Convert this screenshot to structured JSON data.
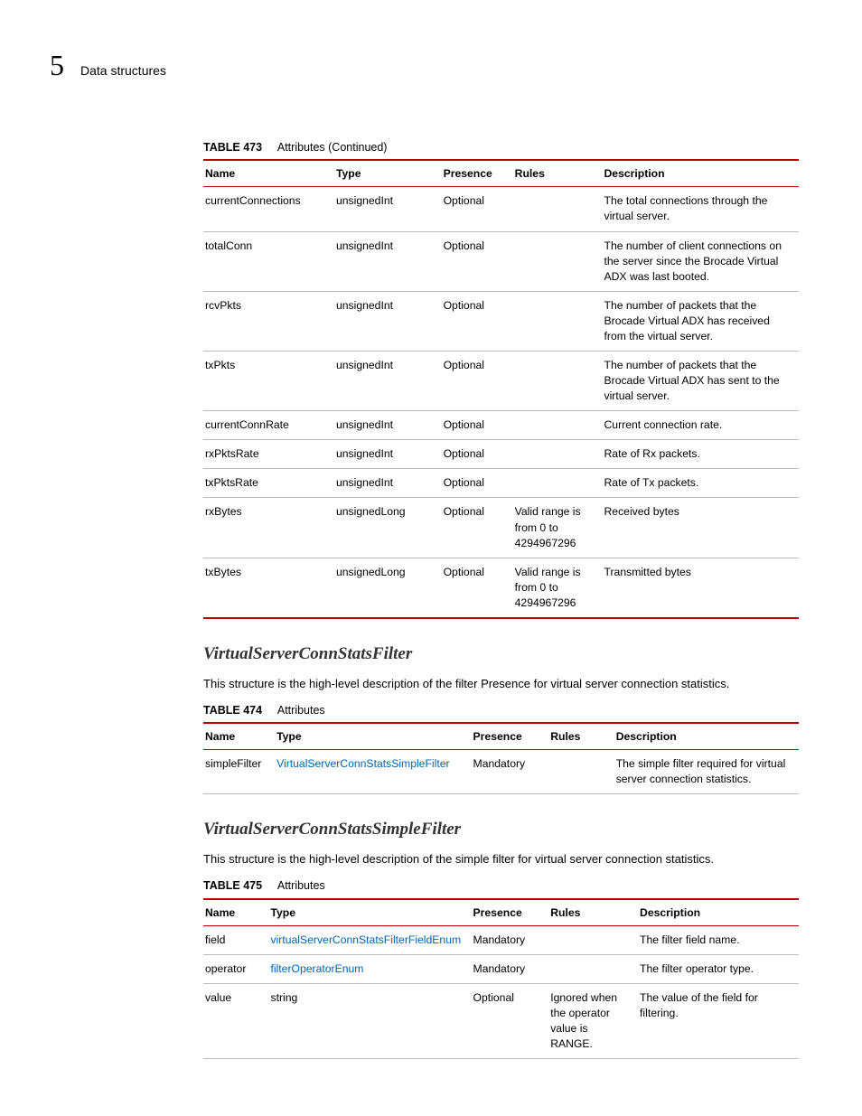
{
  "header": {
    "chapter": "5",
    "title": "Data structures"
  },
  "t473": {
    "number": "TABLE 473",
    "caption": "Attributes  (Continued)",
    "cols": [
      "Name",
      "Type",
      "Presence",
      "Rules",
      "Description"
    ],
    "rows": [
      {
        "name": "currentConnections",
        "type": "unsignedInt",
        "presence": "Optional",
        "rules": "",
        "desc": "The total connections through the virtual server."
      },
      {
        "name": "totalConn",
        "type": "unsignedInt",
        "presence": "Optional",
        "rules": "",
        "desc": "The number of client connections on the server since the Brocade Virtual ADX was last booted."
      },
      {
        "name": "rcvPkts",
        "type": "unsignedInt",
        "presence": "Optional",
        "rules": "",
        "desc": "The number of packets that the Brocade Virtual ADX has received from the virtual server."
      },
      {
        "name": "txPkts",
        "type": "unsignedInt",
        "presence": "Optional",
        "rules": "",
        "desc": "The number of packets that the Brocade Virtual ADX has sent to the virtual server."
      },
      {
        "name": "currentConnRate",
        "type": "unsignedInt",
        "presence": "Optional",
        "rules": "",
        "desc": "Current connection rate."
      },
      {
        "name": "rxPktsRate",
        "type": "unsignedInt",
        "presence": "Optional",
        "rules": "",
        "desc": "Rate of Rx packets."
      },
      {
        "name": "txPktsRate",
        "type": "unsignedInt",
        "presence": "Optional",
        "rules": "",
        "desc": "Rate of Tx packets."
      },
      {
        "name": "rxBytes",
        "type": "unsignedLong",
        "presence": "Optional",
        "rules": "Valid range is from 0 to 4294967296",
        "desc": "Received bytes"
      },
      {
        "name": "txBytes",
        "type": "unsignedLong",
        "presence": "Optional",
        "rules": "Valid range is from 0 to 4294967296",
        "desc": "Transmitted bytes"
      }
    ]
  },
  "sec1": {
    "heading": "VirtualServerConnStatsFilter",
    "para": "This structure is the high-level description of the filter Presence for virtual server connection statistics."
  },
  "t474": {
    "number": "TABLE 474",
    "caption": "Attributes",
    "cols": [
      "Name",
      "Type",
      "Presence",
      "Rules",
      "Description"
    ],
    "rows": [
      {
        "name": "simpleFilter",
        "type": "VirtualServerConnStatsSimpleFilter",
        "type_link": true,
        "presence": "Mandatory",
        "rules": "",
        "desc": "The simple filter required for virtual server connection statistics."
      }
    ]
  },
  "sec2": {
    "heading": "VirtualServerConnStatsSimpleFilter",
    "para": "This structure is the high-level description of the simple filter for virtual server connection statistics."
  },
  "t475": {
    "number": "TABLE 475",
    "caption": "Attributes",
    "cols": [
      "Name",
      "Type",
      "Presence",
      "Rules",
      "Description"
    ],
    "rows": [
      {
        "name": "field",
        "type": "virtualServerConnStatsFilterFieldEnum",
        "type_link": true,
        "presence": "Mandatory",
        "rules": "",
        "desc": "The filter field name."
      },
      {
        "name": "operator",
        "type": "filterOperatorEnum",
        "type_link": true,
        "presence": "Mandatory",
        "rules": "",
        "desc": "The filter operator type."
      },
      {
        "name": "value",
        "type": "string",
        "type_link": false,
        "presence": "Optional",
        "rules": "Ignored when the operator value is RANGE.",
        "desc": "The value of the field for filtering."
      }
    ]
  }
}
